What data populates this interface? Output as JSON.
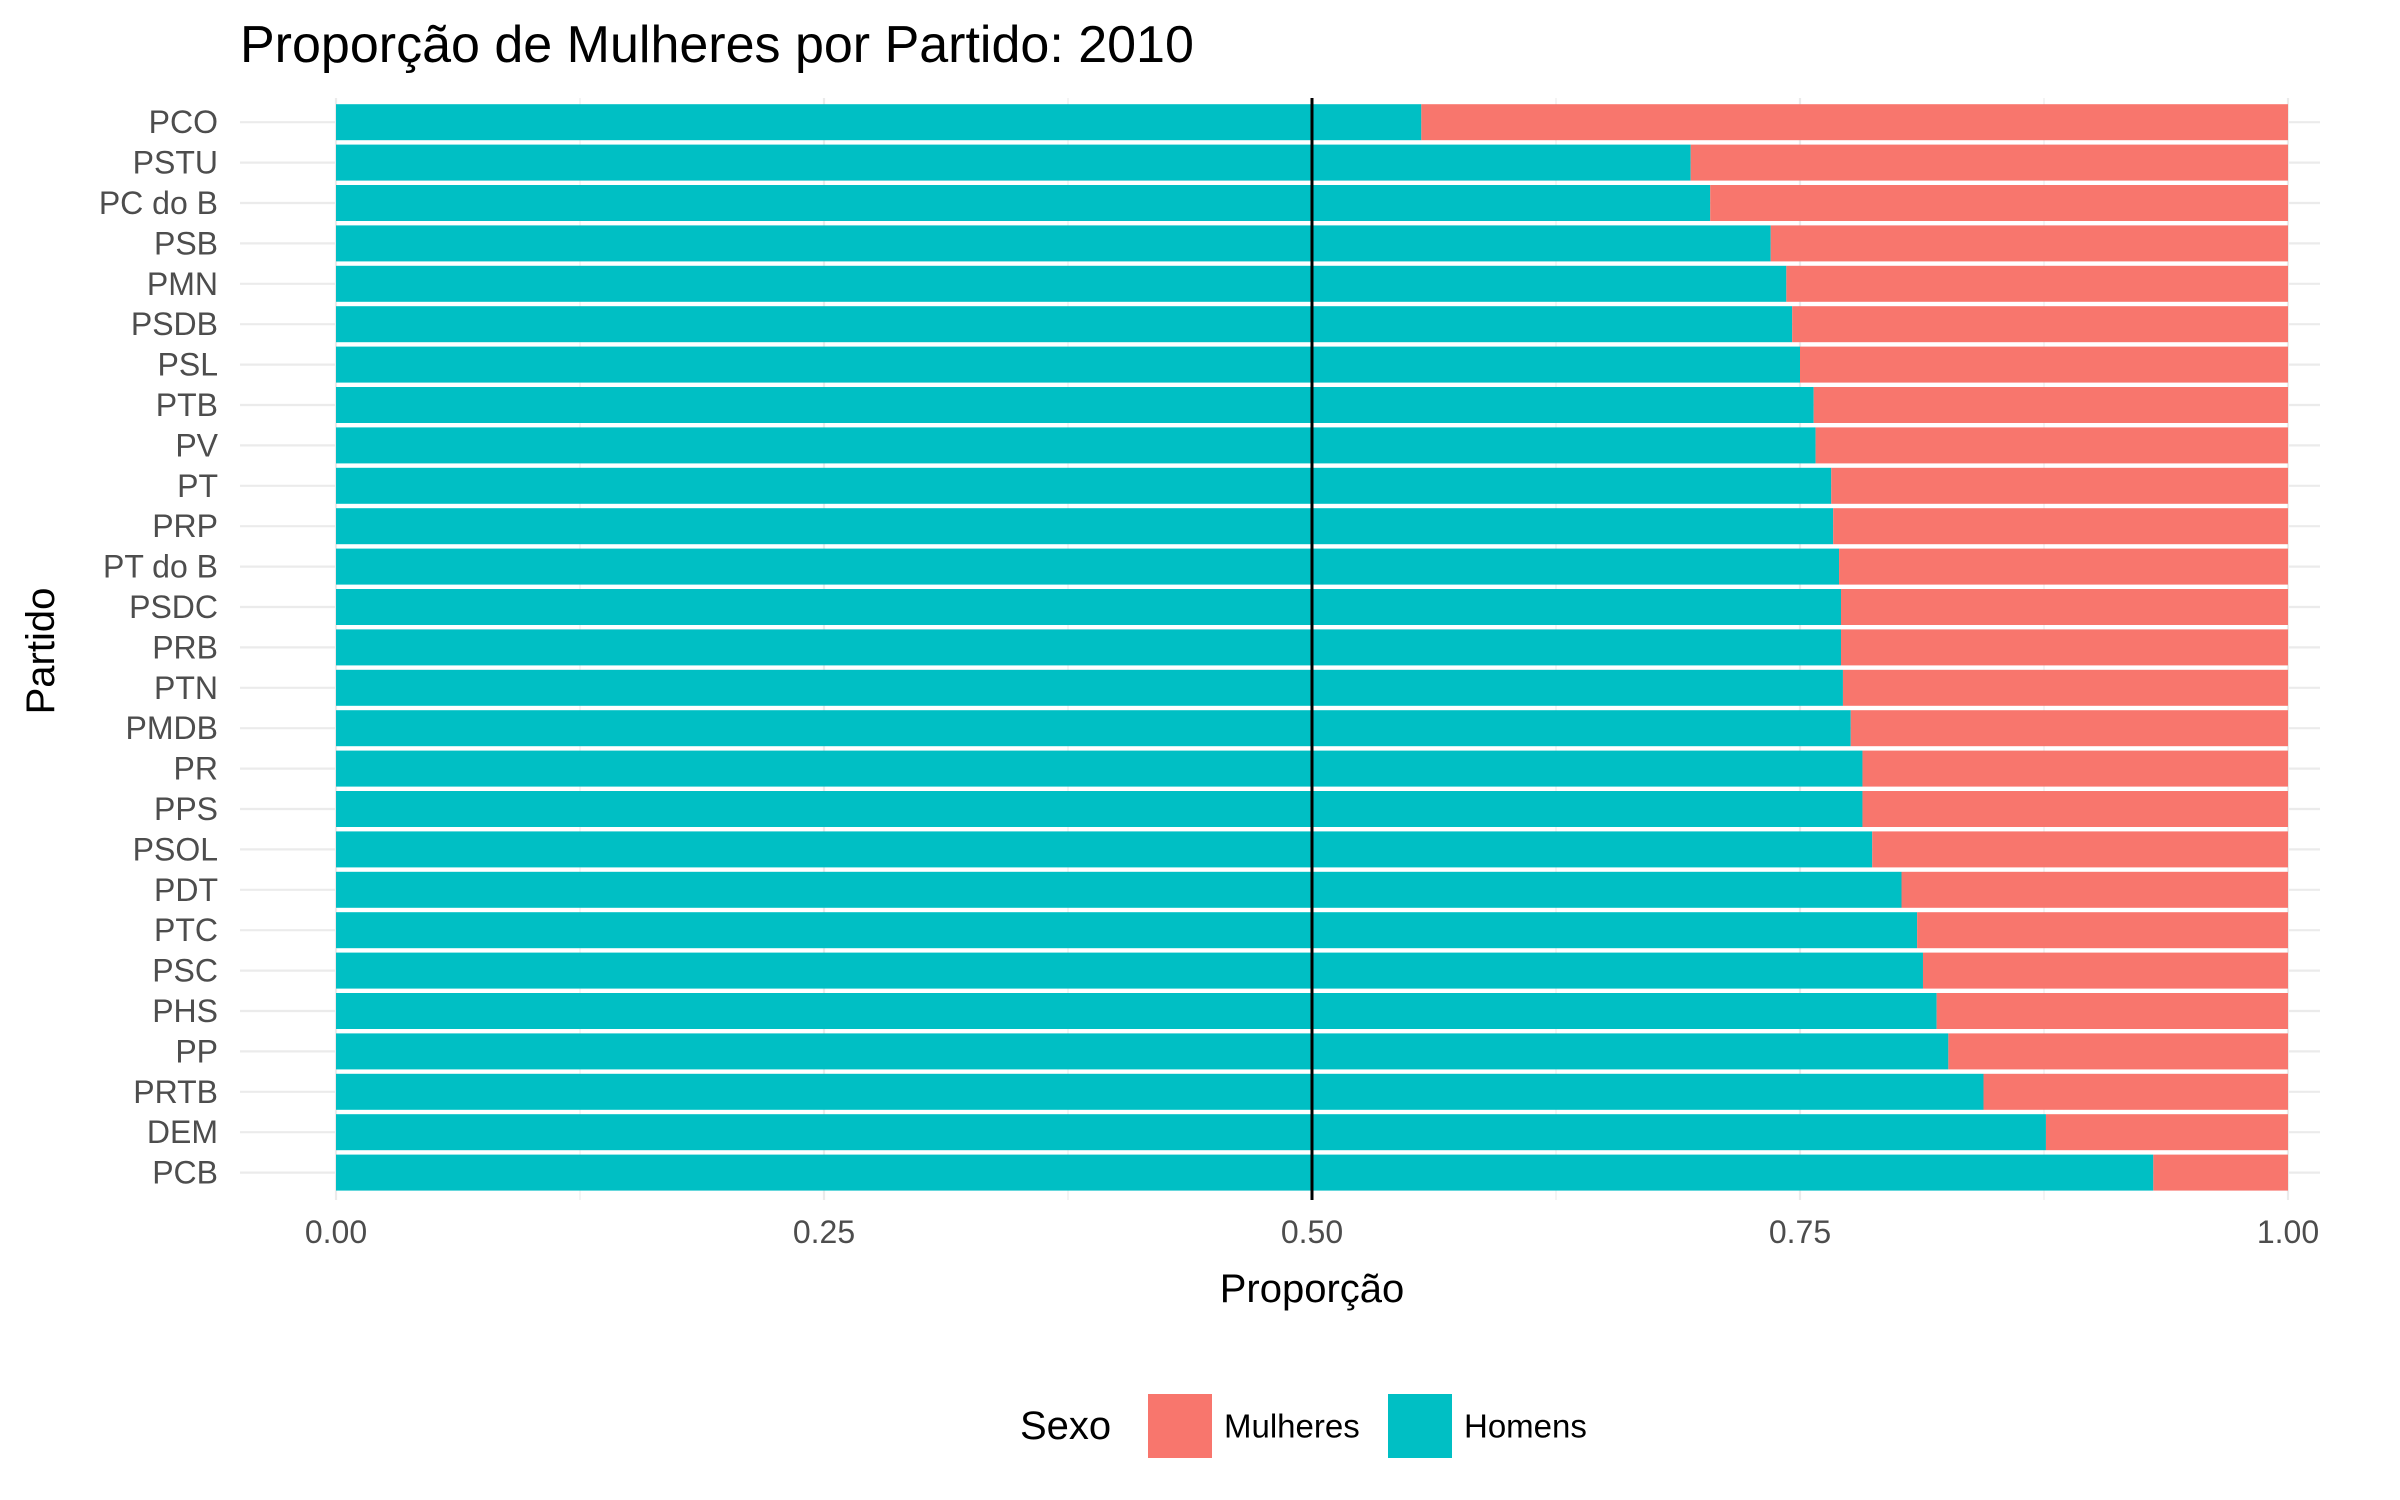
{
  "chart_data": {
    "type": "bar",
    "orientation": "horizontal",
    "stacked": "fill",
    "title": "Proporção de Mulheres por Partido: 2010",
    "xlabel": "Proporção",
    "ylabel": "Partido",
    "xlim": [
      0,
      1
    ],
    "xticks": [
      "0.00",
      "0.25",
      "0.50",
      "0.75",
      "1.00"
    ],
    "xtick_values": [
      0,
      0.25,
      0.5,
      0.75,
      1.0
    ],
    "reference_line": {
      "x": 0.5,
      "color": "#000000"
    },
    "grid": true,
    "categories": [
      "PCO",
      "PSTU",
      "PC do B",
      "PSB",
      "PMN",
      "PSDB",
      "PSL",
      "PTB",
      "PV",
      "PT",
      "PRP",
      "PT do B",
      "PSDC",
      "PRB",
      "PTN",
      "PMDB",
      "PR",
      "PPS",
      "PSOL",
      "PDT",
      "PTC",
      "PSC",
      "PHS",
      "PP",
      "PRTB",
      "DEM",
      "PCB"
    ],
    "series": [
      {
        "name": "Homens",
        "color": "#00BFC4",
        "values": [
          0.556,
          0.694,
          0.704,
          0.735,
          0.743,
          0.746,
          0.75,
          0.757,
          0.758,
          0.766,
          0.767,
          0.77,
          0.771,
          0.771,
          0.772,
          0.776,
          0.782,
          0.782,
          0.787,
          0.802,
          0.81,
          0.813,
          0.82,
          0.826,
          0.844,
          0.876,
          0.931
        ]
      },
      {
        "name": "Mulheres",
        "color": "#F8766D",
        "values": [
          0.444,
          0.306,
          0.296,
          0.265,
          0.257,
          0.254,
          0.25,
          0.243,
          0.242,
          0.234,
          0.233,
          0.23,
          0.229,
          0.229,
          0.228,
          0.224,
          0.218,
          0.218,
          0.213,
          0.198,
          0.19,
          0.187,
          0.18,
          0.174,
          0.156,
          0.124,
          0.069
        ]
      }
    ],
    "legend": {
      "title": "Sexo",
      "position": "bottom",
      "entries": [
        {
          "label": "Mulheres",
          "color": "#F8766D"
        },
        {
          "label": "Homens",
          "color": "#00BFC4"
        }
      ]
    }
  }
}
